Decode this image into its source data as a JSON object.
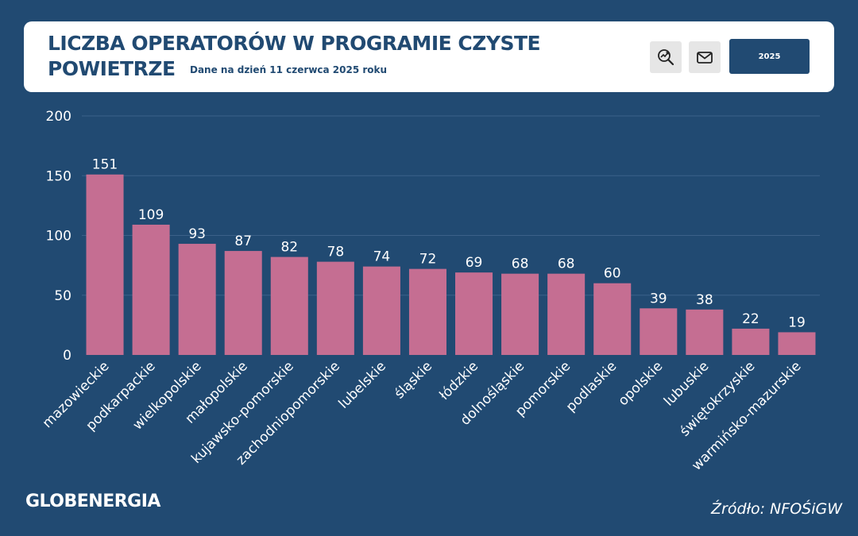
{
  "header": {
    "title": "LICZBA OPERATORÓW W PROGRAMIE CZYSTE POWIETRZE",
    "subtitle": "Dane na dzień 11 czerwca 2025 roku",
    "year_button": "2025",
    "icons": [
      "search-analytics-icon",
      "mail-icon"
    ]
  },
  "footer": {
    "logo": "GLOBENERGIA",
    "source": "Źródło: NFOŚiGW"
  },
  "colors": {
    "background": "#214a72",
    "bar": "#c56e92",
    "text": "#ffffff",
    "gridline": "#3b6189"
  },
  "chart_data": {
    "type": "bar",
    "categories": [
      "mazowieckie",
      "podkarpackie",
      "wielkopolskie",
      "małopolskie",
      "kujawsko-pomorskie",
      "zachodniopomorskie",
      "lubelskie",
      "śląskie",
      "łódzkie",
      "dolnośląskie",
      "pomorskie",
      "podlaskie",
      "opolskie",
      "lubuskie",
      "świętokrzyskie",
      "warmińsko-mazurskie"
    ],
    "values": [
      151,
      109,
      93,
      87,
      82,
      78,
      74,
      72,
      69,
      68,
      68,
      60,
      39,
      38,
      22,
      19
    ],
    "yticks": [
      0,
      50,
      100,
      150,
      200
    ],
    "ylim": [
      0,
      200
    ],
    "grid": true,
    "data_labels": true
  }
}
